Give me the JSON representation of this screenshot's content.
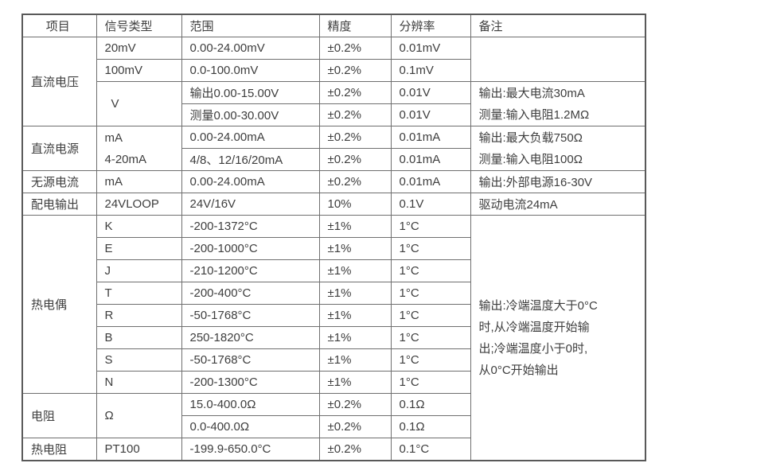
{
  "colors": {
    "background": "#ffffff",
    "border_outer": "#595959",
    "border_inner": "#6f6f6f",
    "text": "#3e3e3e"
  },
  "table": {
    "headers": [
      "项目",
      "信号类型",
      "范围",
      "精度",
      "分辨率",
      "备注"
    ],
    "rows": [
      {
        "cells": [
          {
            "t": "直流电压",
            "rs": 4
          },
          {
            "t": "20mV"
          },
          {
            "t": "0.00-24.00mV"
          },
          {
            "t": "±0.2%"
          },
          {
            "t": "0.01mV"
          },
          {
            "t": "",
            "rs": 2
          }
        ]
      },
      {
        "cells": [
          {
            "t": "100mV"
          },
          {
            "t": "0.0-100.0mV"
          },
          {
            "t": "±0.2%"
          },
          {
            "t": "0.1mV"
          }
        ]
      },
      {
        "cells": [
          {
            "t": "V",
            "rs": 2,
            "cls": "sig-v"
          },
          {
            "t": "输出0.00-15.00V"
          },
          {
            "t": "±0.2%"
          },
          {
            "t": "0.01V"
          },
          {
            "t": "输出:最大电流30mA\n测量:输入电阻1.2MΩ",
            "rs": 2,
            "cls": "multi"
          }
        ]
      },
      {
        "cells": [
          {
            "t": "测量0.00-30.00V"
          },
          {
            "t": "±0.2%"
          },
          {
            "t": "0.01V"
          }
        ]
      },
      {
        "cells": [
          {
            "t": "直流电源",
            "rs": 2
          },
          {
            "t": "mA\n4-20mA",
            "rs": 2,
            "cls": "multi"
          },
          {
            "t": "0.00-24.00mA"
          },
          {
            "t": "±0.2%"
          },
          {
            "t": "0.01mA"
          },
          {
            "t": "输出:最大负载750Ω\n测量:输入电阻100Ω",
            "rs": 2,
            "cls": "multi"
          }
        ]
      },
      {
        "cells": [
          {
            "t": "4/8、12/16/20mA"
          },
          {
            "t": "±0.2%"
          },
          {
            "t": "0.01mA"
          }
        ]
      },
      {
        "cells": [
          {
            "t": "无源电流"
          },
          {
            "t": "mA"
          },
          {
            "t": "0.00-24.00mA"
          },
          {
            "t": "±0.2%"
          },
          {
            "t": "0.01mA"
          },
          {
            "t": "输出:外部电源16-30V"
          }
        ]
      },
      {
        "cells": [
          {
            "t": "配电输出"
          },
          {
            "t": "24VLOOP"
          },
          {
            "t": "24V/16V"
          },
          {
            "t": "10%"
          },
          {
            "t": "0.1V"
          },
          {
            "t": "驱动电流24mA"
          }
        ]
      },
      {
        "cells": [
          {
            "t": "热电偶",
            "rs": 8
          },
          {
            "t": "K"
          },
          {
            "t": "-200-1372°C"
          },
          {
            "t": "±1%"
          },
          {
            "t": "1°C"
          },
          {
            "t": "输出:冷端温度大于0°C\n时,从冷端温度开始输\n出;冷端温度小于0时,\n从0°C开始输出",
            "rs": 11,
            "cls": "multi"
          }
        ]
      },
      {
        "cells": [
          {
            "t": "E"
          },
          {
            "t": "-200-1000°C"
          },
          {
            "t": "±1%"
          },
          {
            "t": "1°C"
          }
        ]
      },
      {
        "cells": [
          {
            "t": "J"
          },
          {
            "t": "-210-1200°C"
          },
          {
            "t": "±1%"
          },
          {
            "t": "1°C"
          }
        ]
      },
      {
        "cells": [
          {
            "t": "T"
          },
          {
            "t": "-200-400°C"
          },
          {
            "t": "±1%"
          },
          {
            "t": "1°C"
          }
        ]
      },
      {
        "cells": [
          {
            "t": "R"
          },
          {
            "t": "-50-1768°C"
          },
          {
            "t": "±1%"
          },
          {
            "t": "1°C"
          }
        ]
      },
      {
        "cells": [
          {
            "t": "B"
          },
          {
            "t": "250-1820°C"
          },
          {
            "t": "±1%"
          },
          {
            "t": "1°C"
          }
        ]
      },
      {
        "cells": [
          {
            "t": "S"
          },
          {
            "t": "-50-1768°C"
          },
          {
            "t": "±1%"
          },
          {
            "t": "1°C"
          }
        ]
      },
      {
        "cells": [
          {
            "t": "N"
          },
          {
            "t": "-200-1300°C"
          },
          {
            "t": "±1%"
          },
          {
            "t": "1°C"
          }
        ]
      },
      {
        "cells": [
          {
            "t": "电阻",
            "rs": 2
          },
          {
            "t": "Ω",
            "rs": 2
          },
          {
            "t": "15.0-400.0Ω"
          },
          {
            "t": "±0.2%"
          },
          {
            "t": "0.1Ω"
          }
        ]
      },
      {
        "cells": [
          {
            "t": "0.0-400.0Ω"
          },
          {
            "t": "±0.2%"
          },
          {
            "t": "0.1Ω"
          }
        ]
      },
      {
        "cells": [
          {
            "t": "热电阻"
          },
          {
            "t": "PT100"
          },
          {
            "t": "-199.9-650.0°C"
          },
          {
            "t": "±0.2%"
          },
          {
            "t": "0.1°C"
          }
        ]
      }
    ]
  }
}
